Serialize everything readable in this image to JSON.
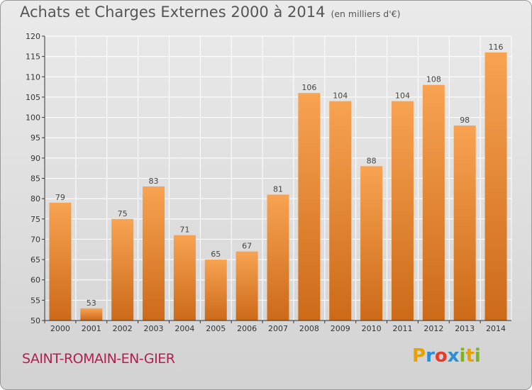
{
  "title": "Achats et Charges Externes 2000 à 2014",
  "subtitle": "(en milliers d'€)",
  "city": "SAINT-ROMAIN-EN-GIER",
  "logo": {
    "letters": [
      "P",
      "r",
      "o",
      "x",
      "i",
      "t",
      "i"
    ],
    "colors": [
      "#e8a100",
      "#2a8fd6",
      "#e83a2a",
      "#2a8fd6",
      "#7ab51d",
      "#e8a100",
      "#7ab51d"
    ]
  },
  "colors": {
    "bar_light": "#f7a352",
    "bar_dark": "#cc6a18",
    "grid": "#ffffff",
    "axis": "#333333"
  },
  "chart_data": {
    "type": "bar",
    "title": "Achats et Charges Externes 2000 à 2014",
    "subtitle": "(en milliers d'€)",
    "categories": [
      "2000",
      "2001",
      "2002",
      "2003",
      "2004",
      "2005",
      "2006",
      "2007",
      "2008",
      "2009",
      "2010",
      "2011",
      "2012",
      "2013",
      "2014"
    ],
    "values": [
      79,
      53,
      75,
      83,
      71,
      65,
      67,
      81,
      106,
      104,
      88,
      104,
      108,
      98,
      116
    ],
    "data_labels": [
      "79",
      "53",
      "75",
      "83",
      "71",
      "65",
      "67",
      "81",
      "106",
      "104",
      "88",
      "104",
      "108",
      "98",
      "116"
    ],
    "ylim": [
      50,
      120
    ],
    "yticks": [
      50,
      55,
      60,
      65,
      70,
      75,
      80,
      85,
      90,
      95,
      100,
      105,
      110,
      115,
      120
    ],
    "ytick_labels": [
      "50",
      "55",
      "60",
      "65",
      "70",
      "75",
      "80",
      "85",
      "90",
      "95",
      "100",
      "105",
      "110",
      "115",
      "120"
    ],
    "grid": true
  }
}
